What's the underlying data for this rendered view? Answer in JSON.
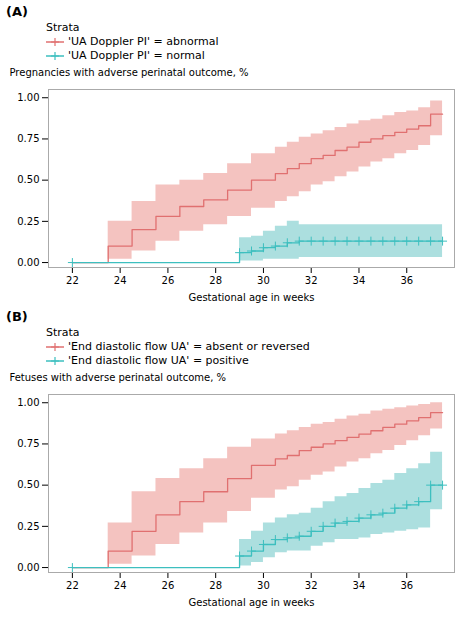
{
  "chart_data": [
    {
      "type": "step",
      "title": "(A)",
      "legend_title": "Strata",
      "xlabel": "Gestational age in weeks",
      "ylabel": "Pregnancies with adverse perinatal outcome, %",
      "xlim": [
        21.0,
        38.0
      ],
      "ylim": [
        -0.03,
        1.05
      ],
      "xticks": [
        22,
        24,
        26,
        28,
        30,
        32,
        34,
        36
      ],
      "yticks": [
        {
          "value": 0.0,
          "label": "0.00"
        },
        0.25,
        {
          "value": 0.5,
          "label": "0.50"
        },
        0.75,
        {
          "value": 1.0,
          "label": "1.00"
        }
      ],
      "grid": false,
      "series": [
        {
          "name": "'UA Doppler PI' = abnormal",
          "color": "#e07070",
          "fill_color": "#f2b8b5",
          "x": [
            22,
            23.5,
            24.5,
            25.5,
            26.5,
            27.5,
            28.5,
            29.5,
            30.5,
            31.0,
            31.5,
            32.0,
            32.5,
            33.0,
            33.5,
            34.0,
            34.5,
            35.0,
            35.5,
            36.0,
            36.5,
            37.0,
            37.5
          ],
          "values": [
            0.0,
            0.1,
            0.2,
            0.28,
            0.34,
            0.38,
            0.44,
            0.5,
            0.54,
            0.57,
            0.6,
            0.63,
            0.65,
            0.68,
            0.7,
            0.73,
            0.75,
            0.77,
            0.79,
            0.81,
            0.83,
            0.9,
            0.9
          ],
          "upper": [
            0.0,
            0.25,
            0.37,
            0.47,
            0.5,
            0.54,
            0.6,
            0.66,
            0.7,
            0.73,
            0.76,
            0.78,
            0.8,
            0.82,
            0.84,
            0.86,
            0.87,
            0.89,
            0.91,
            0.92,
            0.94,
            0.98,
            0.98
          ],
          "lower": [
            0.0,
            0.02,
            0.07,
            0.13,
            0.19,
            0.23,
            0.28,
            0.33,
            0.37,
            0.4,
            0.43,
            0.47,
            0.49,
            0.52,
            0.55,
            0.58,
            0.61,
            0.63,
            0.66,
            0.68,
            0.71,
            0.77,
            0.77
          ]
        },
        {
          "name": "'UA Doppler PI' = normal",
          "color": "#3dbfbf",
          "fill_color": "#9dd9d9",
          "marker": "+",
          "x": [
            22,
            29.0,
            29.5,
            30.0,
            30.5,
            31.0,
            31.5,
            32.0,
            32.5,
            33.0,
            33.5,
            34.0,
            34.5,
            35.0,
            35.5,
            36.0,
            36.5,
            37.0,
            37.5
          ],
          "values": [
            0.0,
            0.06,
            0.07,
            0.09,
            0.1,
            0.12,
            0.13,
            0.13,
            0.13,
            0.13,
            0.13,
            0.13,
            0.13,
            0.13,
            0.13,
            0.13,
            0.13,
            0.13,
            0.13
          ],
          "upper": [
            0.0,
            0.15,
            0.16,
            0.19,
            0.22,
            0.25,
            0.23,
            0.23,
            0.23,
            0.23,
            0.23,
            0.23,
            0.23,
            0.23,
            0.23,
            0.23,
            0.23,
            0.23,
            0.23
          ],
          "lower": [
            0.0,
            0.01,
            0.01,
            0.02,
            0.02,
            0.02,
            0.03,
            0.03,
            0.03,
            0.03,
            0.03,
            0.03,
            0.03,
            0.03,
            0.03,
            0.03,
            0.03,
            0.03,
            0.03
          ]
        }
      ]
    },
    {
      "type": "step",
      "title": "(B)",
      "legend_title": "Strata",
      "xlabel": "Gestational age in weeks",
      "ylabel": "Fetuses with adverse perinatal outcome, %",
      "xlim": [
        21.0,
        38.0
      ],
      "ylim": [
        -0.03,
        1.05
      ],
      "xticks": [
        22,
        24,
        26,
        28,
        30,
        32,
        34,
        36
      ],
      "yticks": [
        {
          "value": 0.0,
          "label": "0.00"
        },
        0.25,
        {
          "value": 0.5,
          "label": "0.50"
        },
        0.75,
        {
          "value": 1.0,
          "label": "1.00"
        }
      ],
      "grid": false,
      "series": [
        {
          "name": "'End diastolic flow UA' = absent or reversed",
          "color": "#e07070",
          "fill_color": "#f2b8b5",
          "x": [
            22,
            23.5,
            24.5,
            25.5,
            26.5,
            27.5,
            28.5,
            29.5,
            30.5,
            31.0,
            31.5,
            32.0,
            32.5,
            33.0,
            33.5,
            34.0,
            34.5,
            35.0,
            35.5,
            36.0,
            36.5,
            37.0,
            37.5
          ],
          "values": [
            0.0,
            0.1,
            0.22,
            0.32,
            0.4,
            0.46,
            0.54,
            0.62,
            0.66,
            0.68,
            0.71,
            0.73,
            0.75,
            0.77,
            0.79,
            0.81,
            0.83,
            0.85,
            0.87,
            0.89,
            0.91,
            0.94,
            0.94
          ],
          "upper": [
            0.0,
            0.27,
            0.46,
            0.54,
            0.6,
            0.66,
            0.73,
            0.78,
            0.81,
            0.83,
            0.85,
            0.87,
            0.88,
            0.9,
            0.92,
            0.93,
            0.95,
            0.96,
            0.97,
            0.98,
            0.99,
            1.0,
            1.0
          ],
          "lower": [
            0.0,
            0.02,
            0.07,
            0.14,
            0.21,
            0.27,
            0.34,
            0.42,
            0.47,
            0.49,
            0.53,
            0.56,
            0.58,
            0.61,
            0.64,
            0.66,
            0.69,
            0.71,
            0.74,
            0.77,
            0.8,
            0.84,
            0.84
          ]
        },
        {
          "name": "'End diastolic flow UA' = positive",
          "color": "#3dbfbf",
          "fill_color": "#9dd9d9",
          "marker": "+",
          "x": [
            22,
            29.0,
            29.5,
            30.0,
            30.5,
            31.0,
            31.5,
            32.0,
            32.5,
            33.0,
            33.5,
            34.0,
            34.5,
            35.0,
            35.5,
            36.0,
            36.5,
            37.0,
            37.5
          ],
          "values": [
            0.0,
            0.07,
            0.1,
            0.14,
            0.17,
            0.18,
            0.19,
            0.22,
            0.25,
            0.27,
            0.28,
            0.3,
            0.32,
            0.33,
            0.36,
            0.38,
            0.4,
            0.5,
            0.5
          ],
          "upper": [
            0.0,
            0.17,
            0.22,
            0.27,
            0.3,
            0.32,
            0.33,
            0.36,
            0.4,
            0.43,
            0.45,
            0.48,
            0.51,
            0.53,
            0.57,
            0.6,
            0.63,
            0.7,
            0.7
          ],
          "lower": [
            0.0,
            0.01,
            0.03,
            0.06,
            0.09,
            0.1,
            0.1,
            0.13,
            0.15,
            0.17,
            0.17,
            0.18,
            0.2,
            0.21,
            0.22,
            0.23,
            0.24,
            0.35,
            0.35
          ]
        }
      ]
    }
  ]
}
